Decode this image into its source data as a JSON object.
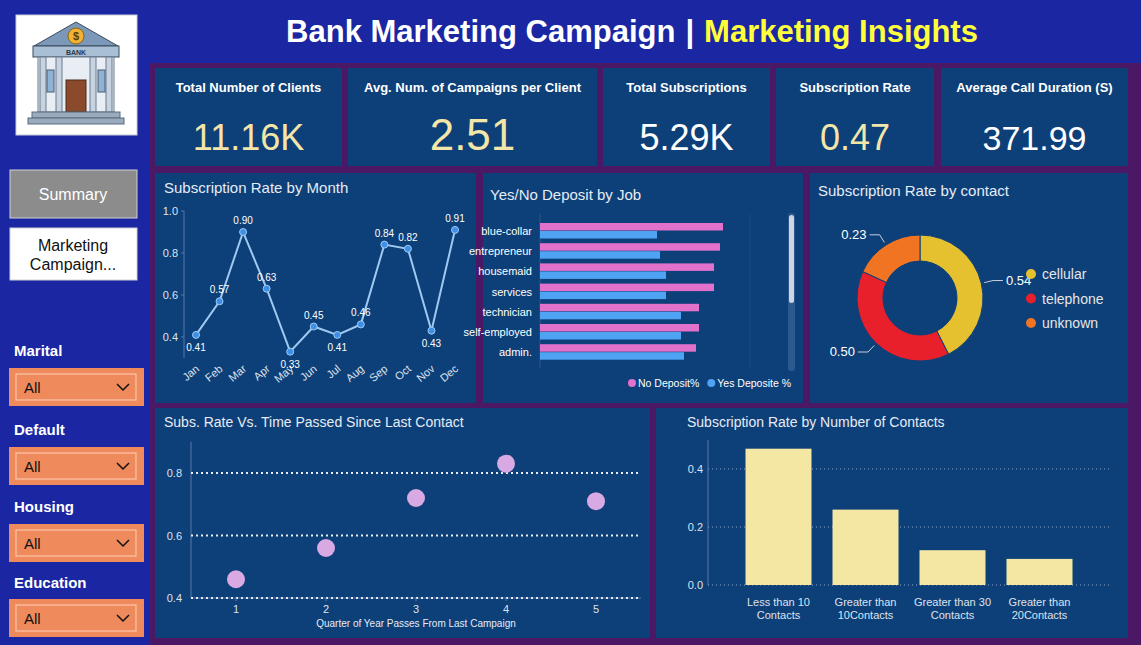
{
  "header": {
    "title": "Bank Marketing Campaign",
    "separator": "|",
    "highlight": "Marketing Insights",
    "logo_text": "BANK",
    "logo_symbol": "$"
  },
  "nav": [
    "Summary",
    "Marketing Campaign..."
  ],
  "filters": [
    {
      "label": "Marital",
      "value": "All"
    },
    {
      "label": "Default",
      "value": "All"
    },
    {
      "label": "Housing",
      "value": "All"
    },
    {
      "label": "Education",
      "value": "All"
    }
  ],
  "kpis": [
    {
      "label": "Total Number of Clients",
      "value": "11.16K"
    },
    {
      "label": "Avg. Num. of Campaigns per Client",
      "value": "2.51"
    },
    {
      "label": "Total Subscriptions",
      "value": "5.29K"
    },
    {
      "label": "Subscription Rate",
      "value": "0.47"
    },
    {
      "label": "Average Call Duration (S)",
      "value": "371.99"
    }
  ],
  "chart_data": [
    {
      "type": "line",
      "title": "Subscription Rate by Month",
      "categories": [
        "Jan",
        "Feb",
        "Mar",
        "Apr",
        "May",
        "Jun",
        "Jul",
        "Aug",
        "Sep",
        "Oct",
        "Nov",
        "Dec"
      ],
      "values": [
        0.41,
        0.57,
        0.9,
        0.63,
        0.33,
        0.45,
        0.41,
        0.46,
        0.84,
        0.82,
        0.43,
        0.91
      ],
      "value_labels": [
        "0.41",
        "0.57",
        "0.90",
        "0.63",
        "0.33",
        "0.45",
        "0.41",
        "0.46",
        "0.84",
        "0.82",
        "0.43",
        "0.91"
      ],
      "color": "#9fcaf0",
      "marker": "circle",
      "data_labels": true,
      "grid": false,
      "ylim": [
        0.3,
        1.0
      ],
      "yticks": [
        0.4,
        0.6,
        0.8,
        {
          "value": 1,
          "label": "1.0"
        }
      ]
    },
    {
      "type": "bar",
      "orientation": "horizontal",
      "title": "Yes/No Deposit by Job",
      "categories": [
        "blue-collar",
        "entrepreneur",
        "housemaid",
        "services",
        "technician",
        "self-employed",
        "admin."
      ],
      "series": [
        {
          "name": "No Deposit%",
          "color": "#e271cb",
          "values": [
            61,
            60,
            58,
            58,
            53,
            53,
            52
          ]
        },
        {
          "name": "Yes Deposite %",
          "color": "#4fa3f3",
          "values": [
            39,
            40,
            42,
            42,
            47,
            47,
            48
          ]
        }
      ],
      "xlim": [
        0,
        70
      ],
      "tick_labels": false,
      "grid": false,
      "legend": "bottom"
    },
    {
      "type": "donut",
      "title": "Subscription Rate by contact",
      "categories": [
        "cellular",
        "telephone",
        "unknown"
      ],
      "values": [
        0.54,
        0.5,
        0.23
      ],
      "value_labels": [
        "0.54",
        "0.50",
        "0.23"
      ],
      "colors": [
        "#e6c12f",
        "#e8202c",
        "#f07422"
      ],
      "data_labels": true,
      "legend": "right"
    },
    {
      "type": "scatter",
      "title": "Subs. Rate Vs. Time Passed Since Last Contact",
      "x": [
        1,
        2,
        3,
        4,
        5
      ],
      "values": [
        0.46,
        0.56,
        0.72,
        0.83,
        0.71
      ],
      "xlabel": "Quarter of Year Passes From Last Campaign",
      "xlim": [
        0.5,
        5.5
      ],
      "xticks": [
        1,
        2,
        3,
        4,
        5
      ],
      "ylim": [
        0.4,
        0.9
      ],
      "yticks": [
        0.4,
        0.6,
        0.8
      ],
      "color": "#d9a9e3",
      "marker": "circle",
      "grid": true
    },
    {
      "type": "bar",
      "title": "Subscription Rate by Number of Contacts",
      "categories": [
        "Less than 10 Contacts",
        "Greater than 10Contacts",
        "Greater than 30 Contacts",
        "Greater than 20Contacts"
      ],
      "values": [
        0.47,
        0.26,
        0.12,
        0.09
      ],
      "color": "#f3e7a3",
      "ylim": [
        0,
        0.5
      ],
      "yticks": [
        {
          "value": 0,
          "label": "0.0"
        },
        0.2,
        0.4
      ],
      "grid": true
    }
  ]
}
